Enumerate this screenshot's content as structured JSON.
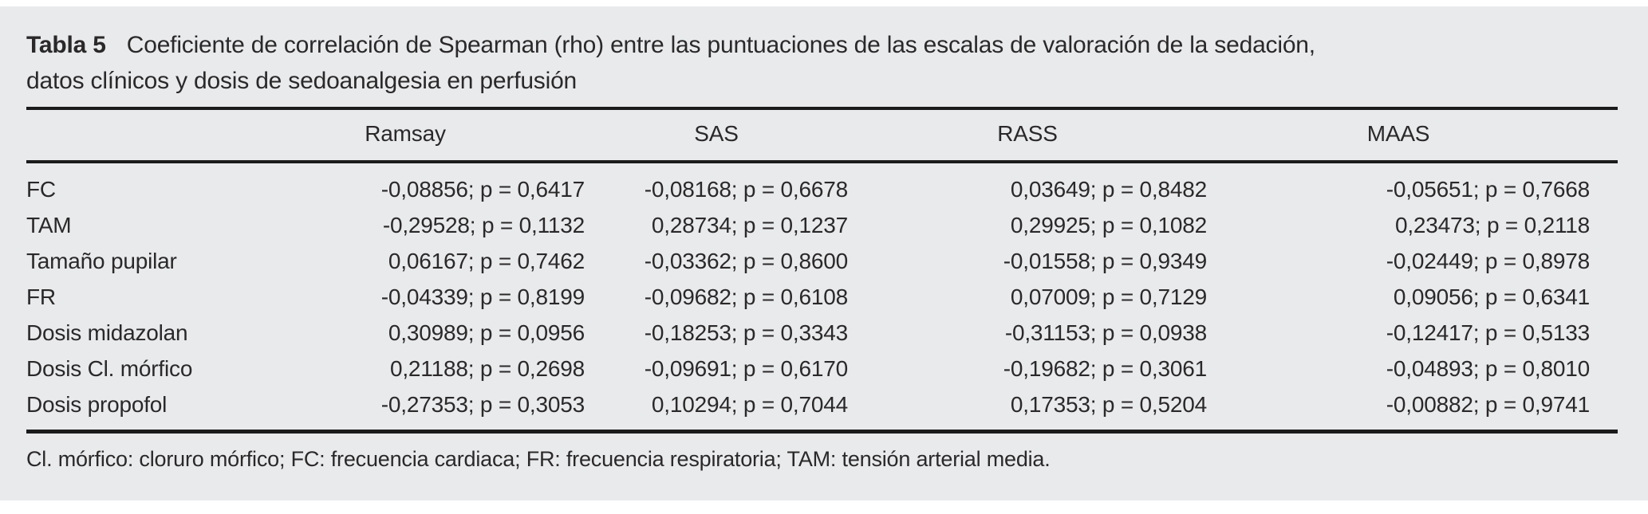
{
  "colors": {
    "page_bg": "#ffffff",
    "panel_bg": "#e8eaec",
    "text": "#2b2829",
    "rule": "#1b1b1b"
  },
  "table": {
    "label": "Tabla 5",
    "caption_lines": [
      "Coeficiente de correlación de Spearman (rho) entre las puntuaciones de las escalas de valoración de la sedación,",
      "datos clínicos y dosis de sedoanalgesia en perfusión"
    ],
    "columns": [
      "",
      "Ramsay",
      "SAS",
      "RASS",
      "MAAS"
    ],
    "rows": [
      {
        "label": "FC",
        "values": [
          "-0,08856; p = 0,6417",
          "-0,08168; p = 0,6678",
          "0,03649; p = 0,8482",
          "-0,05651; p = 0,7668"
        ]
      },
      {
        "label": "TAM",
        "values": [
          "-0,29528; p = 0,1132",
          "0,28734; p = 0,1237",
          "0,29925; p = 0,1082",
          "0,23473; p = 0,2118"
        ]
      },
      {
        "label": "Tamaño pupilar",
        "values": [
          "0,06167; p = 0,7462",
          "-0,03362; p = 0,8600",
          "-0,01558; p = 0,9349",
          "-0,02449; p = 0,8978"
        ]
      },
      {
        "label": "FR",
        "values": [
          "-0,04339; p = 0,8199",
          "-0,09682; p = 0,6108",
          "0,07009; p = 0,7129",
          "0,09056; p = 0,6341"
        ]
      },
      {
        "label": "Dosis midazolan",
        "values": [
          "0,30989; p = 0,0956",
          "-0,18253; p = 0,3343",
          "-0,31153; p = 0,0938",
          "-0,12417; p = 0,5133"
        ]
      },
      {
        "label": "Dosis Cl. mórfico",
        "values": [
          "0,21188; p = 0,2698",
          "-0,09691; p = 0,6170",
          "-0,19682; p = 0,3061",
          "-0,04893; p = 0,8010"
        ]
      },
      {
        "label": "Dosis propofol",
        "values": [
          "-0,27353; p = 0,3053",
          "0,10294; p = 0,7044",
          "0,17353; p = 0,5204",
          "-0,00882; p = 0,9741"
        ]
      }
    ],
    "footnote": "Cl. mórfico: cloruro mórfico; FC: frecuencia cardiaca; FR: frecuencia respiratoria; TAM: tensión arterial media."
  }
}
